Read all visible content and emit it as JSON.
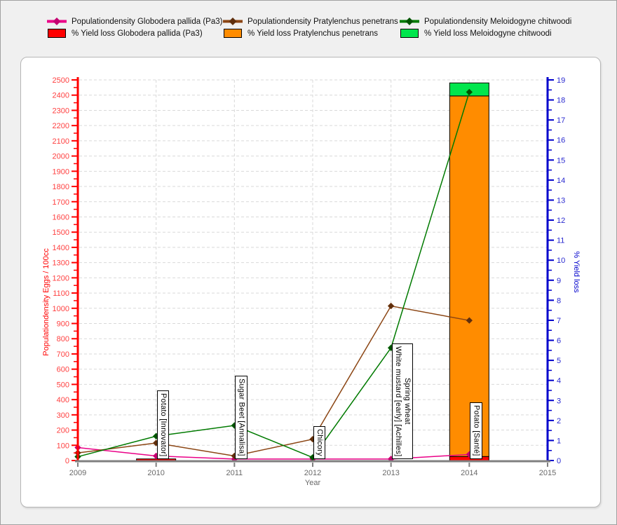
{
  "legend": {
    "items": [
      {
        "label": "Populationdensity Globodera pallida (Pa3)",
        "marker": "line",
        "color": "#ea0087",
        "marker_color": "#c40070"
      },
      {
        "label": "Populationdensity Pratylenchus penetrans",
        "marker": "line",
        "color": "#8b4513",
        "marker_color": "#5f2f0d"
      },
      {
        "label": "Populationdensity Meloidogyne chitwoodi",
        "marker": "line",
        "color": "#007a00",
        "marker_color": "#005200"
      },
      {
        "label": "% Yield loss Globodera pallida (Pa3)",
        "marker": "box",
        "color": "#ff0000"
      },
      {
        "label": "% Yield loss Pratylenchus penetrans",
        "marker": "box",
        "color": "#ff8c00"
      },
      {
        "label": "% Yield loss Meloidogyne chitwoodi",
        "marker": "box",
        "color": "#00e64d"
      }
    ]
  },
  "chart_data": {
    "type": "line+bar combo, dual axis",
    "xlabel": "Year",
    "x_ticks": [
      2009,
      2010,
      2011,
      2012,
      2013,
      2014,
      2015
    ],
    "left_axis": {
      "title": "Populationdensity Eggs / 100cc",
      "min": 0,
      "max": 2500,
      "major_step": 100,
      "minor_step": 50,
      "color": "#ff0000",
      "label_color": "#ff4040"
    },
    "right_axis": {
      "title": "% Yield loss",
      "min": 0,
      "max": 19,
      "major_step": 1,
      "minor_step": 0.5,
      "color": "#0000cc",
      "label_color": "#2a2ad0"
    },
    "line_x": [
      2009,
      2010,
      2011,
      2012,
      2013,
      2014
    ],
    "line_series": [
      {
        "name": "Populationdensity Globodera pallida (Pa3)",
        "axis": "left",
        "color": "#ea0087",
        "marker_color": "#c40070",
        "values": [
          85,
          30,
          10,
          10,
          10,
          40
        ]
      },
      {
        "name": "Populationdensity Pratylenchus penetrans",
        "axis": "left",
        "color": "#8b4513",
        "marker_color": "#5f2f0d",
        "values": [
          50,
          115,
          30,
          140,
          1015,
          920
        ]
      },
      {
        "name": "Populationdensity Meloidogyne chitwoodi",
        "axis": "left",
        "color": "#007a00",
        "marker_color": "#005200",
        "values": [
          25,
          160,
          230,
          20,
          740,
          2420
        ]
      }
    ],
    "bar_series_stacked": [
      {
        "name": "% Yield loss Globodera pallida (Pa3)",
        "axis": "right",
        "color": "#ff0000",
        "values": {
          "2010": 0.08,
          "2014": 0.2
        }
      },
      {
        "name": "% Yield loss Pratylenchus penetrans",
        "axis": "right",
        "color": "#ff8c00",
        "values": {
          "2014": 18.0
        }
      },
      {
        "name": "% Yield loss Meloidogyne chitwoodi",
        "axis": "right",
        "color": "#00e64d",
        "values": {
          "2014": 0.65
        }
      }
    ],
    "annotations": [
      {
        "year": 2010,
        "lines": [
          "Potato [Innovator]"
        ]
      },
      {
        "year": 2011,
        "lines": [
          "Sugar Beet [Annalisa]"
        ]
      },
      {
        "year": 2012,
        "lines": [
          "Chicory"
        ]
      },
      {
        "year": 2013,
        "lines": [
          "White mustard [early] [Achilles]",
          "Spring wheat"
        ]
      },
      {
        "year": 2014,
        "lines": [
          "Potato [Santé]"
        ]
      }
    ],
    "grid": {
      "horizontal_every_left": 100,
      "vertical_at_years": true,
      "color": "#d9d9d9",
      "dash": "4 3"
    },
    "x_axis_color": "#808080",
    "x_label_color": "#696969"
  }
}
